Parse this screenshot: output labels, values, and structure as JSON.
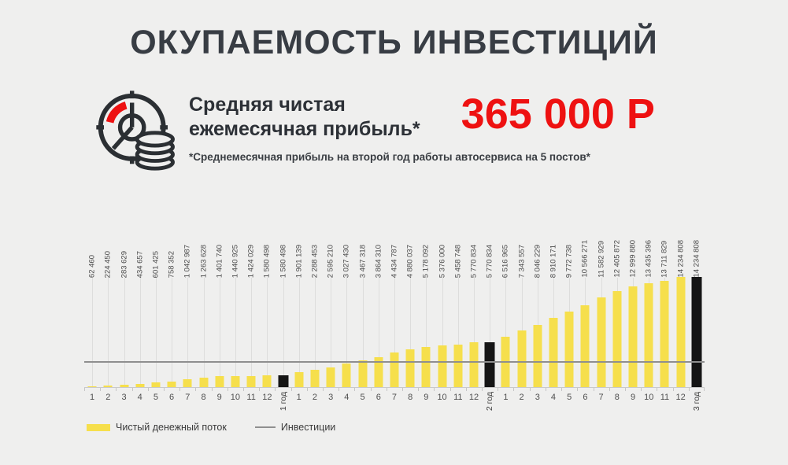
{
  "title": "ОКУПАЕМОСТЬ ИНВЕСТИЦИЙ",
  "header": {
    "icon": "stopwatch-with-coins",
    "profit_label_line1": "Средняя чистая",
    "profit_label_line2": "ежемесячная прибыль*",
    "profit_value": "365 000 Р",
    "footnote": "*Среднемесячная прибыль на второй год работы автосервиса на 5 постов*"
  },
  "colors": {
    "background": "#efefee",
    "title_text": "#383d44",
    "accent_red": "#ee1111",
    "bar_yellow": "#f6df4c",
    "bar_black": "#151515",
    "investments_line": "#8f8f8f"
  },
  "chart_data": {
    "type": "bar",
    "title": "",
    "xlabel": "",
    "ylabel": "",
    "ylim": [
      0,
      14234808
    ],
    "grid": "vertical",
    "legend_position": "bottom-left",
    "legend": [
      {
        "label": "Чистый денежный поток",
        "kind": "month",
        "swatch": "bar"
      },
      {
        "label": "Инвестиции",
        "kind": "line",
        "swatch": "line"
      }
    ],
    "investments_value_estimate": 3500000,
    "colors": {
      "month": "#f6df4c",
      "year": "#151515",
      "line": "#8f8f8f"
    },
    "bars": [
      {
        "x": "1",
        "kind": "month",
        "value": 62460,
        "label": "62 460"
      },
      {
        "x": "2",
        "kind": "month",
        "value": 224450,
        "label": "224 450"
      },
      {
        "x": "3",
        "kind": "month",
        "value": 283629,
        "label": "283 629"
      },
      {
        "x": "4",
        "kind": "month",
        "value": 434657,
        "label": "434 657"
      },
      {
        "x": "5",
        "kind": "month",
        "value": 601425,
        "label": "601 425"
      },
      {
        "x": "6",
        "kind": "month",
        "value": 758352,
        "label": "758 352"
      },
      {
        "x": "7",
        "kind": "month",
        "value": 1042987,
        "label": "1 042 987"
      },
      {
        "x": "8",
        "kind": "month",
        "value": 1263628,
        "label": "1 263 628"
      },
      {
        "x": "9",
        "kind": "month",
        "value": 1401740,
        "label": "1 401 740"
      },
      {
        "x": "10",
        "kind": "month",
        "value": 1440925,
        "label": "1 440 925"
      },
      {
        "x": "11",
        "kind": "month",
        "value": 1424029,
        "label": "1 424 029"
      },
      {
        "x": "12",
        "kind": "month",
        "value": 1580498,
        "label": "1 580 498"
      },
      {
        "x": "1 год",
        "kind": "year",
        "value": 1580498,
        "label": "1 580 498"
      },
      {
        "x": "1",
        "kind": "month",
        "value": 1901139,
        "label": "1 901 139"
      },
      {
        "x": "2",
        "kind": "month",
        "value": 2288453,
        "label": "2 288 453"
      },
      {
        "x": "3",
        "kind": "month",
        "value": 2595210,
        "label": "2 595 210"
      },
      {
        "x": "4",
        "kind": "month",
        "value": 3027430,
        "label": "3 027 430"
      },
      {
        "x": "5",
        "kind": "month",
        "value": 3467318,
        "label": "3 467 318"
      },
      {
        "x": "6",
        "kind": "month",
        "value": 3864310,
        "label": "3 864 310"
      },
      {
        "x": "7",
        "kind": "month",
        "value": 4434787,
        "label": "4 434 787"
      },
      {
        "x": "8",
        "kind": "month",
        "value": 4880037,
        "label": "4 880 037"
      },
      {
        "x": "9",
        "kind": "month",
        "value": 5178092,
        "label": "5 178 092"
      },
      {
        "x": "10",
        "kind": "month",
        "value": 5376000,
        "label": "5 376 000"
      },
      {
        "x": "11",
        "kind": "month",
        "value": 5458748,
        "label": "5 458 748"
      },
      {
        "x": "12",
        "kind": "month",
        "value": 5770834,
        "label": "5 770 834"
      },
      {
        "x": "2 год",
        "kind": "year",
        "value": 5770834,
        "label": "5 770 834"
      },
      {
        "x": "1",
        "kind": "month",
        "value": 6516965,
        "label": "6 516 965"
      },
      {
        "x": "2",
        "kind": "month",
        "value": 7343557,
        "label": "7 343 557"
      },
      {
        "x": "3",
        "kind": "month",
        "value": 8046229,
        "label": "8 046 229"
      },
      {
        "x": "4",
        "kind": "month",
        "value": 8910171,
        "label": "8 910 171"
      },
      {
        "x": "5",
        "kind": "month",
        "value": 9772738,
        "label": "9 772 738"
      },
      {
        "x": "6",
        "kind": "month",
        "value": 10566271,
        "label": "10 566 271"
      },
      {
        "x": "7",
        "kind": "month",
        "value": 11582929,
        "label": "11 582 929"
      },
      {
        "x": "8",
        "kind": "month",
        "value": 12405872,
        "label": "12 405 872"
      },
      {
        "x": "9",
        "kind": "month",
        "value": 12999880,
        "label": "12 999 880"
      },
      {
        "x": "10",
        "kind": "month",
        "value": 13435396,
        "label": "13 435 396"
      },
      {
        "x": "11",
        "kind": "month",
        "value": 13711829,
        "label": "13 711 829"
      },
      {
        "x": "12",
        "kind": "month",
        "value": 14234808,
        "label": "14 234 808"
      },
      {
        "x": "3 год",
        "kind": "year",
        "value": 14234808,
        "label": "14 234 808"
      }
    ]
  }
}
